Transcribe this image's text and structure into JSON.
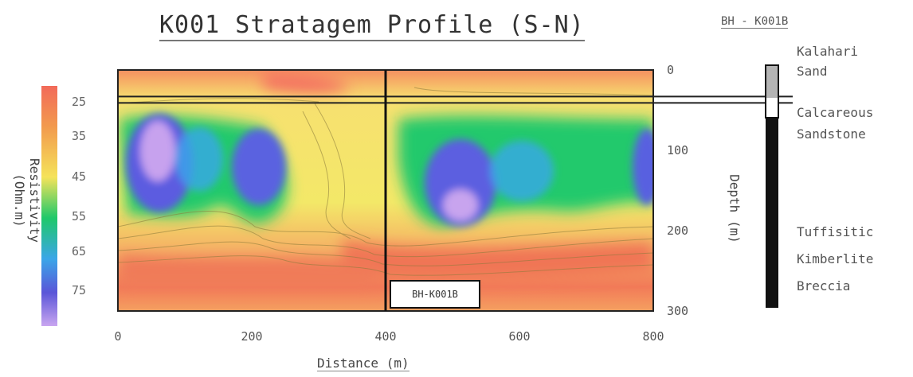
{
  "title": "K001 Stratagem Profile (S-N)",
  "borehole_label": "BH - K001B",
  "well_tag": "BH-K001B",
  "colorbar": {
    "label": "Resistivity (Ohm.m)",
    "ticks": [
      "25",
      "35",
      "45",
      "55",
      "65",
      "75"
    ],
    "colors": [
      "#f26a5a",
      "#f29a4e",
      "#f5e35a",
      "#1fc86a",
      "#3aa6e8",
      "#5a55d8",
      "#c9a6f0"
    ]
  },
  "lithology": {
    "units": [
      {
        "name": "Kalahari Sand",
        "lines": [
          "Kalahari",
          "Sand"
        ]
      },
      {
        "name": "Calcareous Sandstone",
        "lines": [
          "Calcareous",
          "Sandstone"
        ]
      },
      {
        "name": "Tuffisitic Kimberlite Breccia",
        "lines": [
          "Tuffisitic",
          "Kimberlite",
          "Breccia"
        ]
      }
    ]
  },
  "chart_data": {
    "type": "heatmap",
    "title": "K001 Stratagem Profile (S-N)",
    "xlabel": "Distance (m)",
    "ylabel": "Depth (m)",
    "colorbar_label": "Resistivity (Ohm.m)",
    "xlim": [
      0,
      800
    ],
    "ylim": [
      300,
      0
    ],
    "x_ticks": [
      0,
      200,
      400,
      600,
      800
    ],
    "depth_ticks": [
      0,
      100,
      200,
      300
    ],
    "borehole_x": 400,
    "layer_boundaries_depth": [
      33,
      41
    ],
    "low_resistivity_zones": [
      {
        "x": 60,
        "depth": 70,
        "resistivity": 75
      },
      {
        "x": 210,
        "depth": 90,
        "resistivity": 70
      },
      {
        "x": 520,
        "depth": 115,
        "resistivity": 75
      },
      {
        "x": 780,
        "depth": 80,
        "resistivity": 70
      }
    ]
  }
}
